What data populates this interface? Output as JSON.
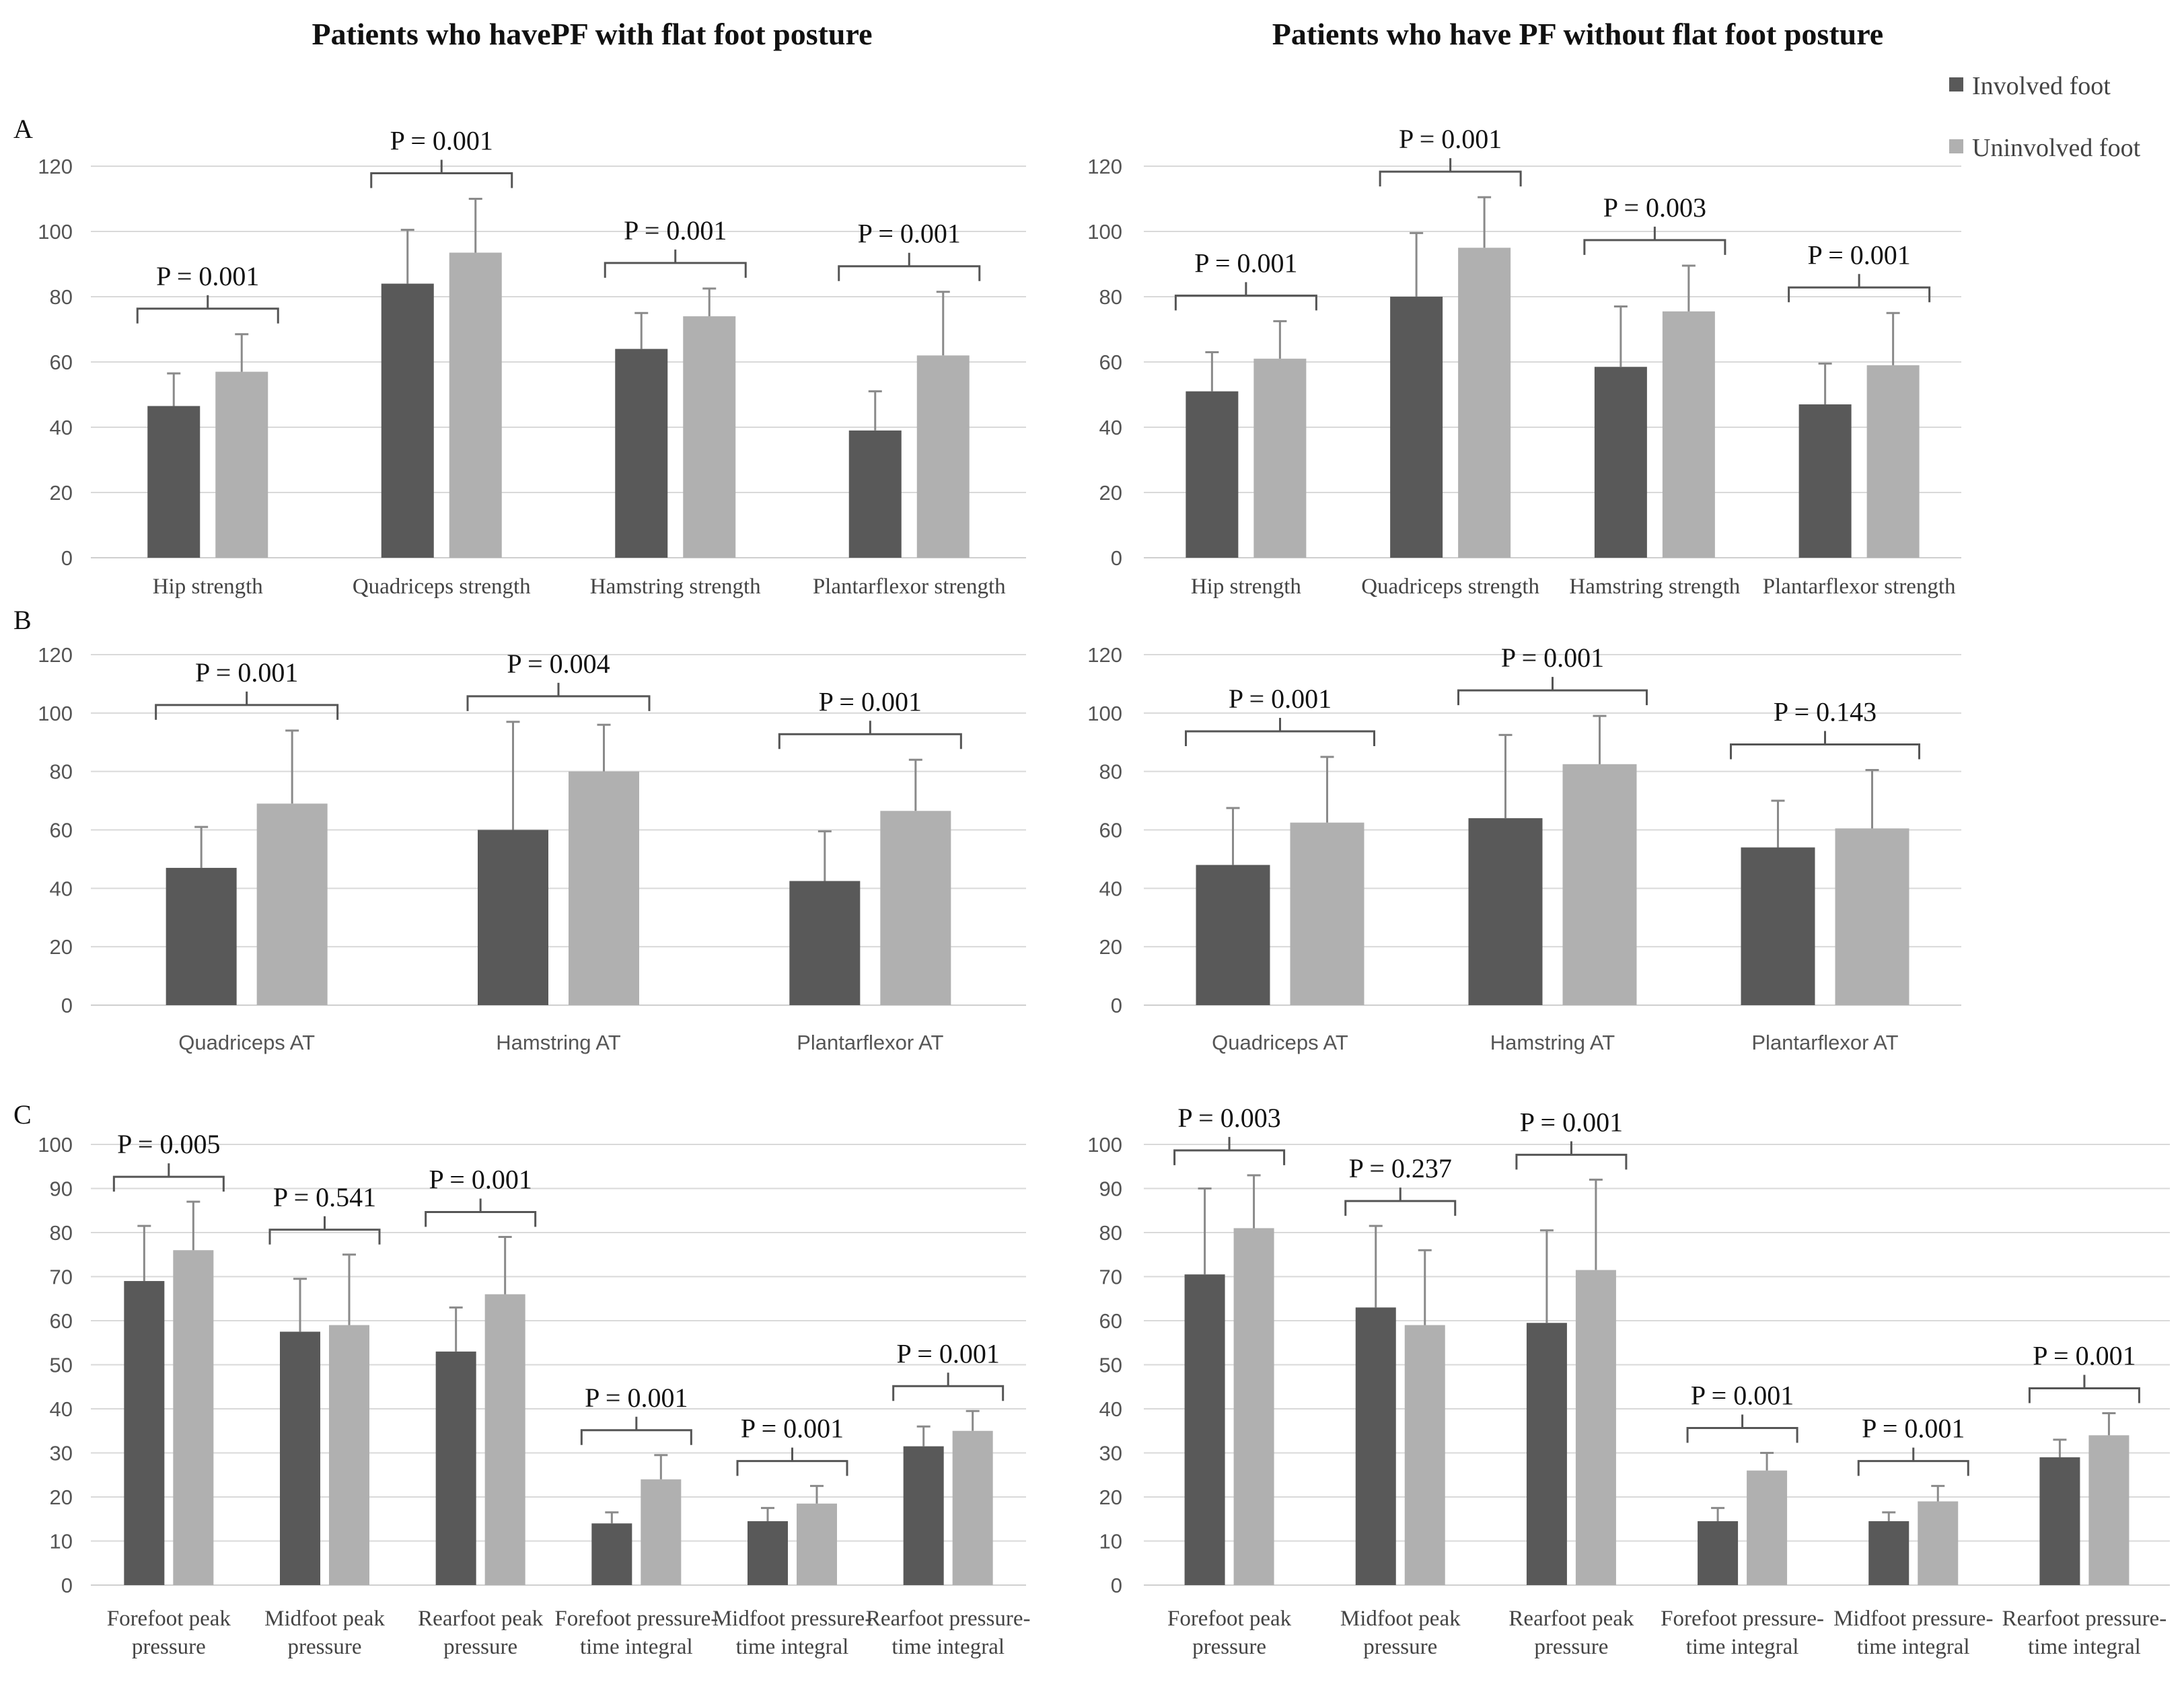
{
  "titles": {
    "left": "Patients who havePF with flat foot posture",
    "right": "Patients who have PF without flat foot posture"
  },
  "row_labels": [
    "A",
    "B",
    "C"
  ],
  "legend": {
    "involved": "Involved foot",
    "uninvolved": "Uninvolved foot"
  },
  "colors": {
    "involved": "#595959",
    "uninvolved": "#b0b0b0"
  },
  "chart_data": [
    {
      "id": "A-left",
      "type": "bar",
      "title": "",
      "xlabel": "",
      "ylabel": "",
      "ylim": [
        0,
        120
      ],
      "ticks": [
        0,
        20,
        40,
        60,
        80,
        100,
        120
      ],
      "categories": [
        [
          "Hip strength"
        ],
        [
          "Quadriceps strength"
        ],
        [
          "Hamstring strength"
        ],
        [
          "Plantarflexor strength"
        ]
      ],
      "series": [
        {
          "name": "Involved foot",
          "values": [
            46.5,
            84,
            64,
            39
          ],
          "errors": [
            10,
            16.5,
            11,
            12
          ]
        },
        {
          "name": "Uninvolved foot",
          "values": [
            57,
            93.5,
            74,
            62
          ],
          "errors": [
            11.5,
            16.5,
            8.5,
            19.5
          ]
        }
      ],
      "pvalues": [
        "P = 0.001",
        "P = 0.001",
        "P = 0.001",
        "P = 0.001"
      ]
    },
    {
      "id": "A-right",
      "type": "bar",
      "title": "",
      "xlabel": "",
      "ylabel": "",
      "ylim": [
        0,
        120
      ],
      "ticks": [
        0,
        20,
        40,
        60,
        80,
        100,
        120
      ],
      "categories": [
        [
          "Hip strength"
        ],
        [
          "Quadriceps strength"
        ],
        [
          "Hamstring strength"
        ],
        [
          "Plantarflexor strength"
        ]
      ],
      "series": [
        {
          "name": "Involved foot",
          "values": [
            51,
            80,
            58.5,
            47
          ],
          "errors": [
            12,
            19.5,
            18.5,
            12.5
          ]
        },
        {
          "name": "Uninvolved foot",
          "values": [
            61,
            95,
            75.5,
            59
          ],
          "errors": [
            11.5,
            15.5,
            14,
            16
          ]
        }
      ],
      "pvalues": [
        "P = 0.001",
        "P = 0.001",
        "P = 0.003",
        "P = 0.001"
      ]
    },
    {
      "id": "B-left",
      "type": "bar",
      "title": "",
      "xlabel": "",
      "ylabel": "",
      "ylim": [
        0,
        120
      ],
      "ticks": [
        0,
        20,
        40,
        60,
        80,
        100,
        120
      ],
      "categories": [
        [
          "Quadriceps AT"
        ],
        [
          "Hamstring AT"
        ],
        [
          "Plantarflexor AT"
        ]
      ],
      "series": [
        {
          "name": "Involved foot",
          "values": [
            47,
            60,
            42.5
          ],
          "errors": [
            14,
            37,
            17
          ]
        },
        {
          "name": "Uninvolved foot",
          "values": [
            69,
            80,
            66.5
          ],
          "errors": [
            25,
            16,
            17.5
          ]
        }
      ],
      "pvalues": [
        "P = 0.001",
        "P = 0.004",
        "P = 0.001"
      ]
    },
    {
      "id": "B-right",
      "type": "bar",
      "title": "",
      "xlabel": "",
      "ylabel": "",
      "ylim": [
        0,
        120
      ],
      "ticks": [
        0,
        20,
        40,
        60,
        80,
        100,
        120
      ],
      "categories": [
        [
          "Quadriceps AT"
        ],
        [
          "Hamstring AT"
        ],
        [
          "Plantarflexor AT"
        ]
      ],
      "series": [
        {
          "name": "Involved foot",
          "values": [
            48,
            64,
            54
          ],
          "errors": [
            19.5,
            28.5,
            16
          ]
        },
        {
          "name": "Uninvolved foot",
          "values": [
            62.5,
            82.5,
            60.5
          ],
          "errors": [
            22.5,
            16.5,
            20
          ]
        }
      ],
      "pvalues": [
        "P = 0.001",
        "P = 0.001",
        "P = 0.143"
      ]
    },
    {
      "id": "C-left",
      "type": "bar",
      "title": "",
      "xlabel": "",
      "ylabel": "",
      "ylim": [
        0,
        100
      ],
      "ticks": [
        0,
        10,
        20,
        30,
        40,
        50,
        60,
        70,
        80,
        90,
        100
      ],
      "categories": [
        [
          "Forefoot peak",
          "pressure"
        ],
        [
          "Midfoot peak",
          "pressure"
        ],
        [
          "Rearfoot peak",
          "pressure"
        ],
        [
          "Forefoot pressure-",
          "time integral"
        ],
        [
          "Midfoot pressure-",
          "time integral"
        ],
        [
          "Rearfoot pressure-",
          "time integral"
        ]
      ],
      "series": [
        {
          "name": "Involved foot",
          "values": [
            69,
            57.5,
            53,
            14,
            14.5,
            31.5
          ],
          "errors": [
            12.5,
            12,
            10,
            2.5,
            3,
            4.5
          ]
        },
        {
          "name": "Uninvolved foot",
          "values": [
            76,
            59,
            66,
            24,
            18.5,
            35
          ],
          "errors": [
            11,
            16,
            13,
            5.5,
            4,
            4.5
          ]
        }
      ],
      "pvalues": [
        "P = 0.005",
        "P = 0.541",
        "P = 0.001",
        "P = 0.001",
        "P = 0.001",
        "P = 0.001"
      ]
    },
    {
      "id": "C-right",
      "type": "bar",
      "title": "",
      "xlabel": "",
      "ylabel": "",
      "ylim": [
        0,
        100
      ],
      "ticks": [
        0,
        10,
        20,
        30,
        40,
        50,
        60,
        70,
        80,
        90,
        100
      ],
      "categories": [
        [
          "Forefoot peak",
          "pressure"
        ],
        [
          "Midfoot peak",
          "pressure"
        ],
        [
          "Rearfoot peak",
          "pressure"
        ],
        [
          "Forefoot pressure-",
          "time integral"
        ],
        [
          "Midfoot pressure-",
          "time integral"
        ],
        [
          "Rearfoot pressure-",
          "time integral"
        ]
      ],
      "series": [
        {
          "name": "Involved foot",
          "values": [
            70.5,
            63,
            59.5,
            14.5,
            14.5,
            29
          ],
          "errors": [
            19.5,
            18.5,
            21,
            3,
            2,
            4
          ]
        },
        {
          "name": "Uninvolved foot",
          "values": [
            81,
            59,
            71.5,
            26,
            19,
            34
          ],
          "errors": [
            12,
            17,
            20.5,
            4,
            3.5,
            5
          ]
        }
      ],
      "pvalues": [
        "P = 0.003",
        "P = 0.237",
        "P = 0.001",
        "P = 0.001",
        "P = 0.001",
        "P = 0.001"
      ]
    }
  ]
}
